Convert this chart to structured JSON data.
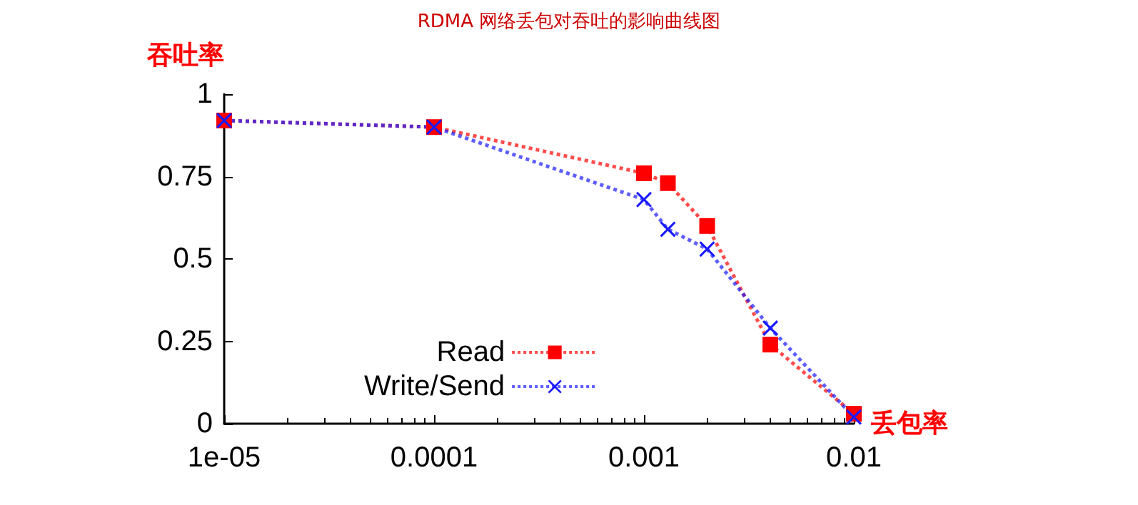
{
  "chart_data": {
    "type": "line",
    "title": "RDMA 网络丢包对吞吐的影响曲线图",
    "xlabel": "丢包率",
    "ylabel": "吞吐率",
    "log": "x",
    "grid": false,
    "legend": "bottom",
    "line_style": "dotted",
    "xlim": [
      1e-05,
      0.01
    ],
    "xticks": [
      {
        "value": 1e-05,
        "label": "1e-05"
      },
      0.0001,
      0.001,
      0.01
    ],
    "ylim": [
      0,
      1
    ],
    "yticks": [
      0,
      0.25,
      0.5,
      0.75,
      1
    ],
    "series": [
      {
        "name": "Read",
        "color": "#ff0000",
        "marker": "square",
        "x": [
          1e-05,
          0.0001,
          0.001,
          0.0013,
          0.002,
          0.004,
          0.01
        ],
        "values": [
          0.92,
          0.9,
          0.76,
          0.73,
          0.6,
          0.24,
          0.03
        ]
      },
      {
        "name": "Write/Send",
        "color": "#1a1aff",
        "marker": "cross",
        "x": [
          1e-05,
          0.0001,
          0.001,
          0.0013,
          0.002,
          0.004,
          0.01
        ],
        "values": [
          0.92,
          0.9,
          0.68,
          0.59,
          0.53,
          0.29,
          0.02
        ]
      }
    ]
  }
}
